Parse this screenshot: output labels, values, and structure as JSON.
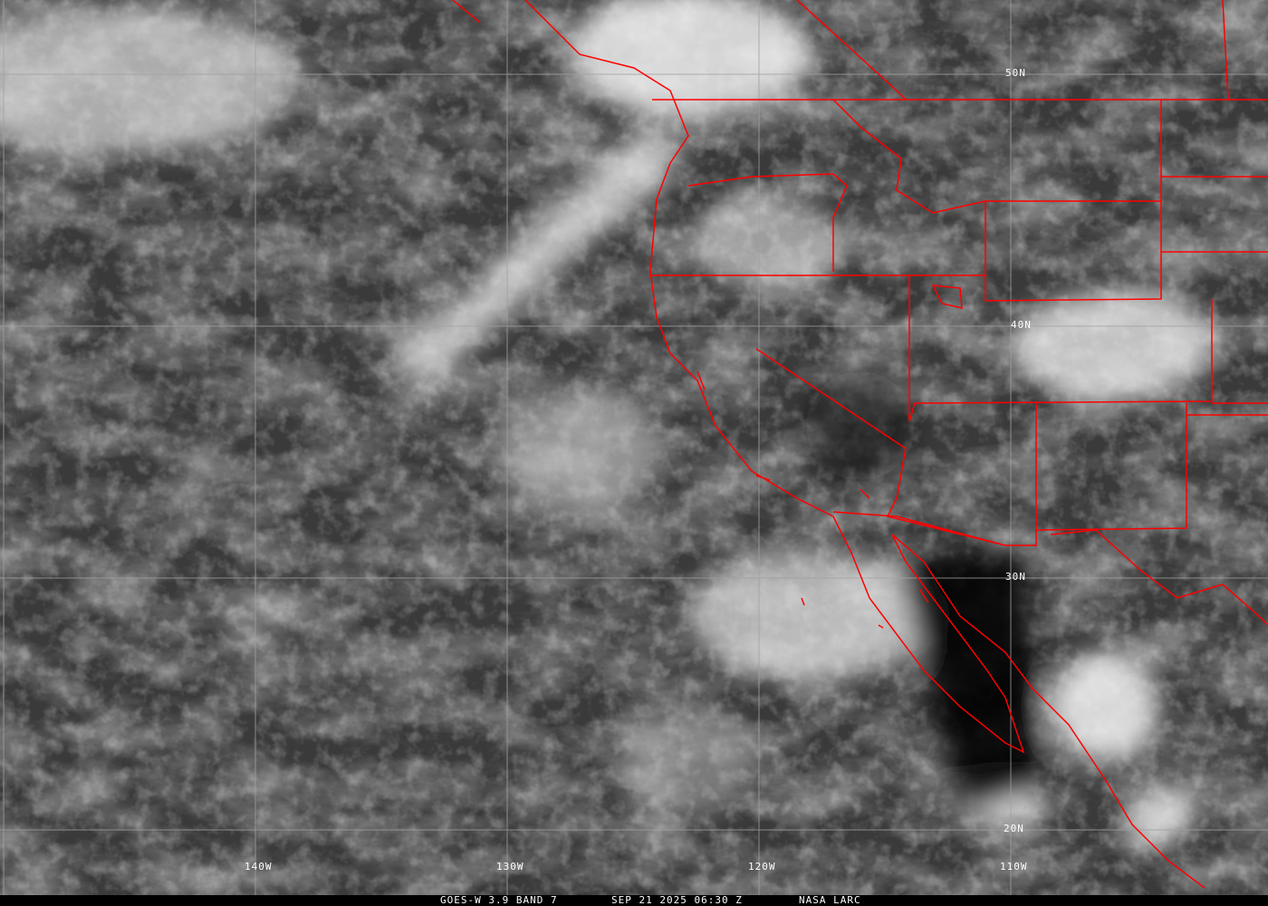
{
  "caption": {
    "satellite": "GOES-W 3.9 BAND 7",
    "datetime": "SEP 21 2025 06:30 Z",
    "source": "NASA LARC"
  },
  "grid": {
    "latitude_labels": [
      "50N",
      "40N",
      "30N",
      "20N"
    ],
    "longitude_labels": [
      "140W",
      "130W",
      "120W",
      "110W"
    ]
  },
  "colors": {
    "borders": "#ff0000",
    "grid": "#a0a0a0",
    "caption_bar": "#000000"
  }
}
